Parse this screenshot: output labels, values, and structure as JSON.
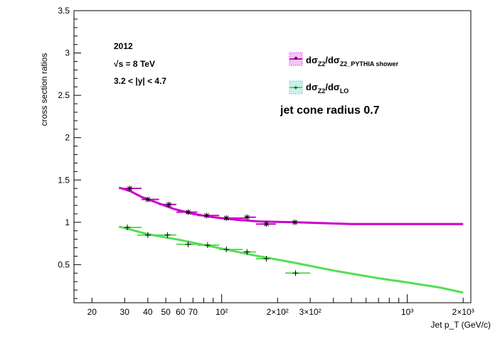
{
  "chart_data": {
    "type": "line",
    "title": "",
    "xlabel": "Jet p_T (GeV/c)",
    "ylabel": "cross section ratios",
    "x_scale": "log",
    "xlim": [
      16,
      2200
    ],
    "ylim": [
      0.05,
      3.5
    ],
    "grid": false,
    "y_ticks": [
      {
        "value": 0.5,
        "label": "0.5"
      },
      {
        "value": 1,
        "label": "1"
      },
      {
        "value": 1.5,
        "label": "1.5"
      },
      {
        "value": 2,
        "label": "2"
      },
      {
        "value": 2.5,
        "label": "2.5"
      },
      {
        "value": 3,
        "label": "3"
      },
      {
        "value": 3.5,
        "label": "3.5"
      }
    ],
    "x_ticks": [
      {
        "value": 20,
        "label": "20"
      },
      {
        "value": 30,
        "label": "30"
      },
      {
        "value": 40,
        "label": "40"
      },
      {
        "value": 50,
        "label": "50"
      },
      {
        "value": 60,
        "label": "60"
      },
      {
        "value": 70,
        "label": "70"
      },
      {
        "value": 100,
        "label": "10²"
      },
      {
        "value": 200,
        "label": "2×10²"
      },
      {
        "value": 300,
        "label": "3×10²"
      },
      {
        "value": 1000,
        "label": "10³"
      },
      {
        "value": 2000,
        "label": "2×10³"
      }
    ],
    "annotations": [
      {
        "text": "2012",
        "name": "year-label"
      },
      {
        "text": "√s = 8 TeV",
        "name": "energy-label"
      },
      {
        "text": "3.2 < |y| < 4.7",
        "name": "rapidity-label"
      },
      {
        "text": "jet cone radius 0.7",
        "name": "cone-radius-label"
      }
    ],
    "legend_position": "top-right",
    "series": [
      {
        "name": "dσ_Z2/dσ_Z2_PYTHIA shower",
        "legend_main": "dσ",
        "legend_sub1": "Z2",
        "legend_mid": "/dσ",
        "legend_sub2": "Z2_PYTHIA shower",
        "color": "#cc00cc",
        "points": [
          {
            "x": 32,
            "xlo": 28,
            "xhi": 37,
            "y": 1.4
          },
          {
            "x": 40,
            "xlo": 37,
            "xhi": 46,
            "y": 1.27
          },
          {
            "x": 52,
            "xlo": 46,
            "xhi": 57,
            "y": 1.21
          },
          {
            "x": 66,
            "xlo": 57,
            "xhi": 74,
            "y": 1.12
          },
          {
            "x": 83,
            "xlo": 74,
            "xhi": 97,
            "y": 1.08
          },
          {
            "x": 106,
            "xlo": 97,
            "xhi": 133,
            "y": 1.05
          },
          {
            "x": 137,
            "xlo": 133,
            "xhi": 153,
            "y": 1.06
          },
          {
            "x": 174,
            "xlo": 153,
            "xhi": 196,
            "y": 0.98
          },
          {
            "x": 248,
            "xlo": 220,
            "xhi": 300,
            "y": 1.0
          }
        ],
        "fit": [
          [
            28,
            1.41
          ],
          [
            32,
            1.37
          ],
          [
            37,
            1.3
          ],
          [
            45,
            1.23
          ],
          [
            55,
            1.16
          ],
          [
            70,
            1.1
          ],
          [
            90,
            1.06
          ],
          [
            120,
            1.03
          ],
          [
            160,
            1.01
          ],
          [
            250,
            1.0
          ],
          [
            500,
            0.98
          ],
          [
            1000,
            0.98
          ],
          [
            2000,
            0.98
          ]
        ]
      },
      {
        "name": "dσ_Z2/dσ_LO",
        "legend_main": "dσ",
        "legend_sub1": "Z2",
        "legend_mid": "/dσ",
        "legend_sub2": "LO",
        "color": "#55dd55",
        "points": [
          {
            "x": 31,
            "xlo": 28,
            "xhi": 37,
            "y": 0.94
          },
          {
            "x": 40,
            "xlo": 35,
            "xhi": 46,
            "y": 0.85
          },
          {
            "x": 51,
            "xlo": 46,
            "xhi": 57,
            "y": 0.85
          },
          {
            "x": 66,
            "xlo": 57,
            "xhi": 74,
            "y": 0.74
          },
          {
            "x": 84,
            "xlo": 74,
            "xhi": 97,
            "y": 0.73
          },
          {
            "x": 106,
            "xlo": 97,
            "xhi": 130,
            "y": 0.68
          },
          {
            "x": 137,
            "xlo": 130,
            "xhi": 153,
            "y": 0.65
          },
          {
            "x": 174,
            "xlo": 153,
            "xhi": 196,
            "y": 0.57
          },
          {
            "x": 250,
            "xlo": 220,
            "xhi": 300,
            "y": 0.4
          }
        ],
        "fit": [
          [
            28,
            0.95
          ],
          [
            40,
            0.86
          ],
          [
            60,
            0.79
          ],
          [
            100,
            0.69
          ],
          [
            150,
            0.61
          ],
          [
            250,
            0.52
          ],
          [
            400,
            0.43
          ],
          [
            700,
            0.34
          ],
          [
            1000,
            0.29
          ],
          [
            1500,
            0.23
          ],
          [
            2000,
            0.17
          ]
        ]
      }
    ]
  }
}
